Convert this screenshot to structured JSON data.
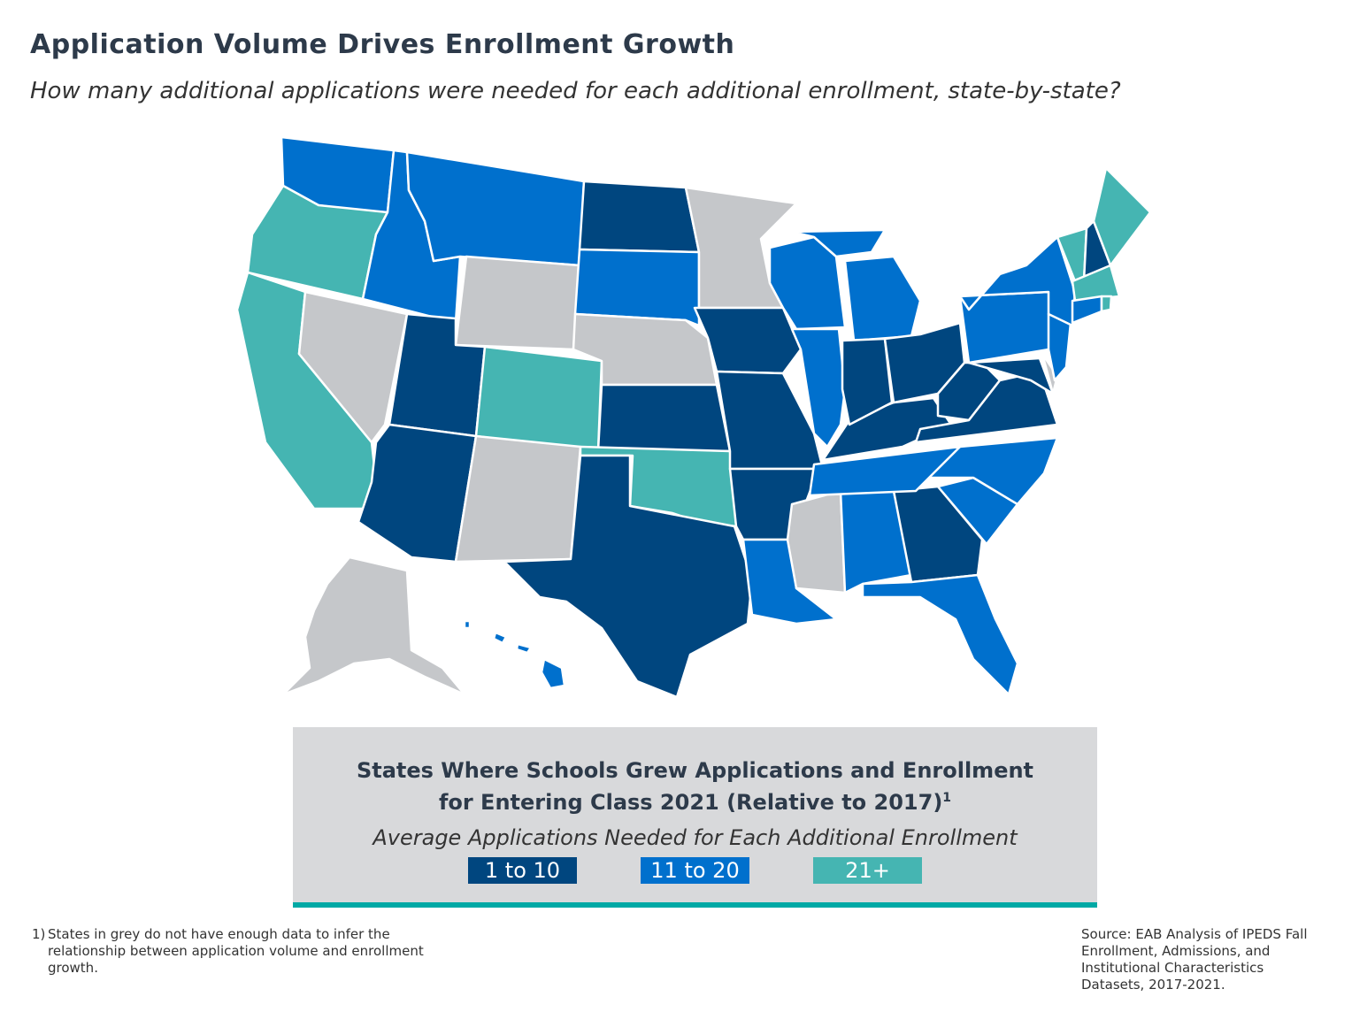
{
  "title": "Application Volume Drives Enrollment Growth",
  "subtitle": "How many additional applications were needed for each additional enrollment, state-by-state?",
  "colors": {
    "1 to 10": "#00467f",
    "11 to 20": "#0070cd",
    "21+": "#45b5b2",
    "no data": "#c5c7ca"
  },
  "states": {
    "WA": "11 to 20",
    "OR": "21+",
    "CA": "21+",
    "NV": "no data",
    "ID": "11 to 20",
    "MT": "11 to 20",
    "WY": "no data",
    "UT": "1 to 10",
    "CO": "21+",
    "AZ": "1 to 10",
    "NM": "no data",
    "ND": "1 to 10",
    "SD": "11 to 20",
    "NE": "no data",
    "KS": "1 to 10",
    "OK": "21+",
    "TX": "1 to 10",
    "MN": "no data",
    "IA": "1 to 10",
    "MO": "1 to 10",
    "AR": "1 to 10",
    "LA": "11 to 20",
    "MS": "no data",
    "AL": "11 to 20",
    "GA": "1 to 10",
    "FL": "11 to 20",
    "SC": "11 to 20",
    "NC": "11 to 20",
    "TN": "11 to 20",
    "KY": "1 to 10",
    "WI": "11 to 20",
    "IL": "11 to 20",
    "MI": "11 to 20",
    "IN": "1 to 10",
    "OH": "1 to 10",
    "WV": "1 to 10",
    "VA": "1 to 10",
    "MD": "1 to 10",
    "DE": "no data",
    "PA": "11 to 20",
    "NJ": "11 to 20",
    "NY": "11 to 20",
    "VT": "21+",
    "NH": "1 to 10",
    "ME": "21+",
    "MA": "21+",
    "CT": "11 to 20",
    "RI": "21+",
    "AK": "no data",
    "HI": "11 to 20"
  },
  "legend": {
    "title_line1": "States Where Schools Grew Applications and Enrollment",
    "title_line2": "for Entering Class 2021 (Relative to 2017)",
    "footnote_marker": "1",
    "subtitle": "Average Applications Needed for Each Additional Enrollment",
    "items": [
      "1 to 10",
      "11 to 20",
      "21+"
    ]
  },
  "footnote": {
    "number": "1)",
    "text": "States in grey do not have enough data to infer the relationship between application volume and enrollment growth."
  },
  "source": "Source: EAB Analysis of IPEDS Fall Enrollment, Admissions, and Institutional Characteristics Datasets, 2017-2021."
}
